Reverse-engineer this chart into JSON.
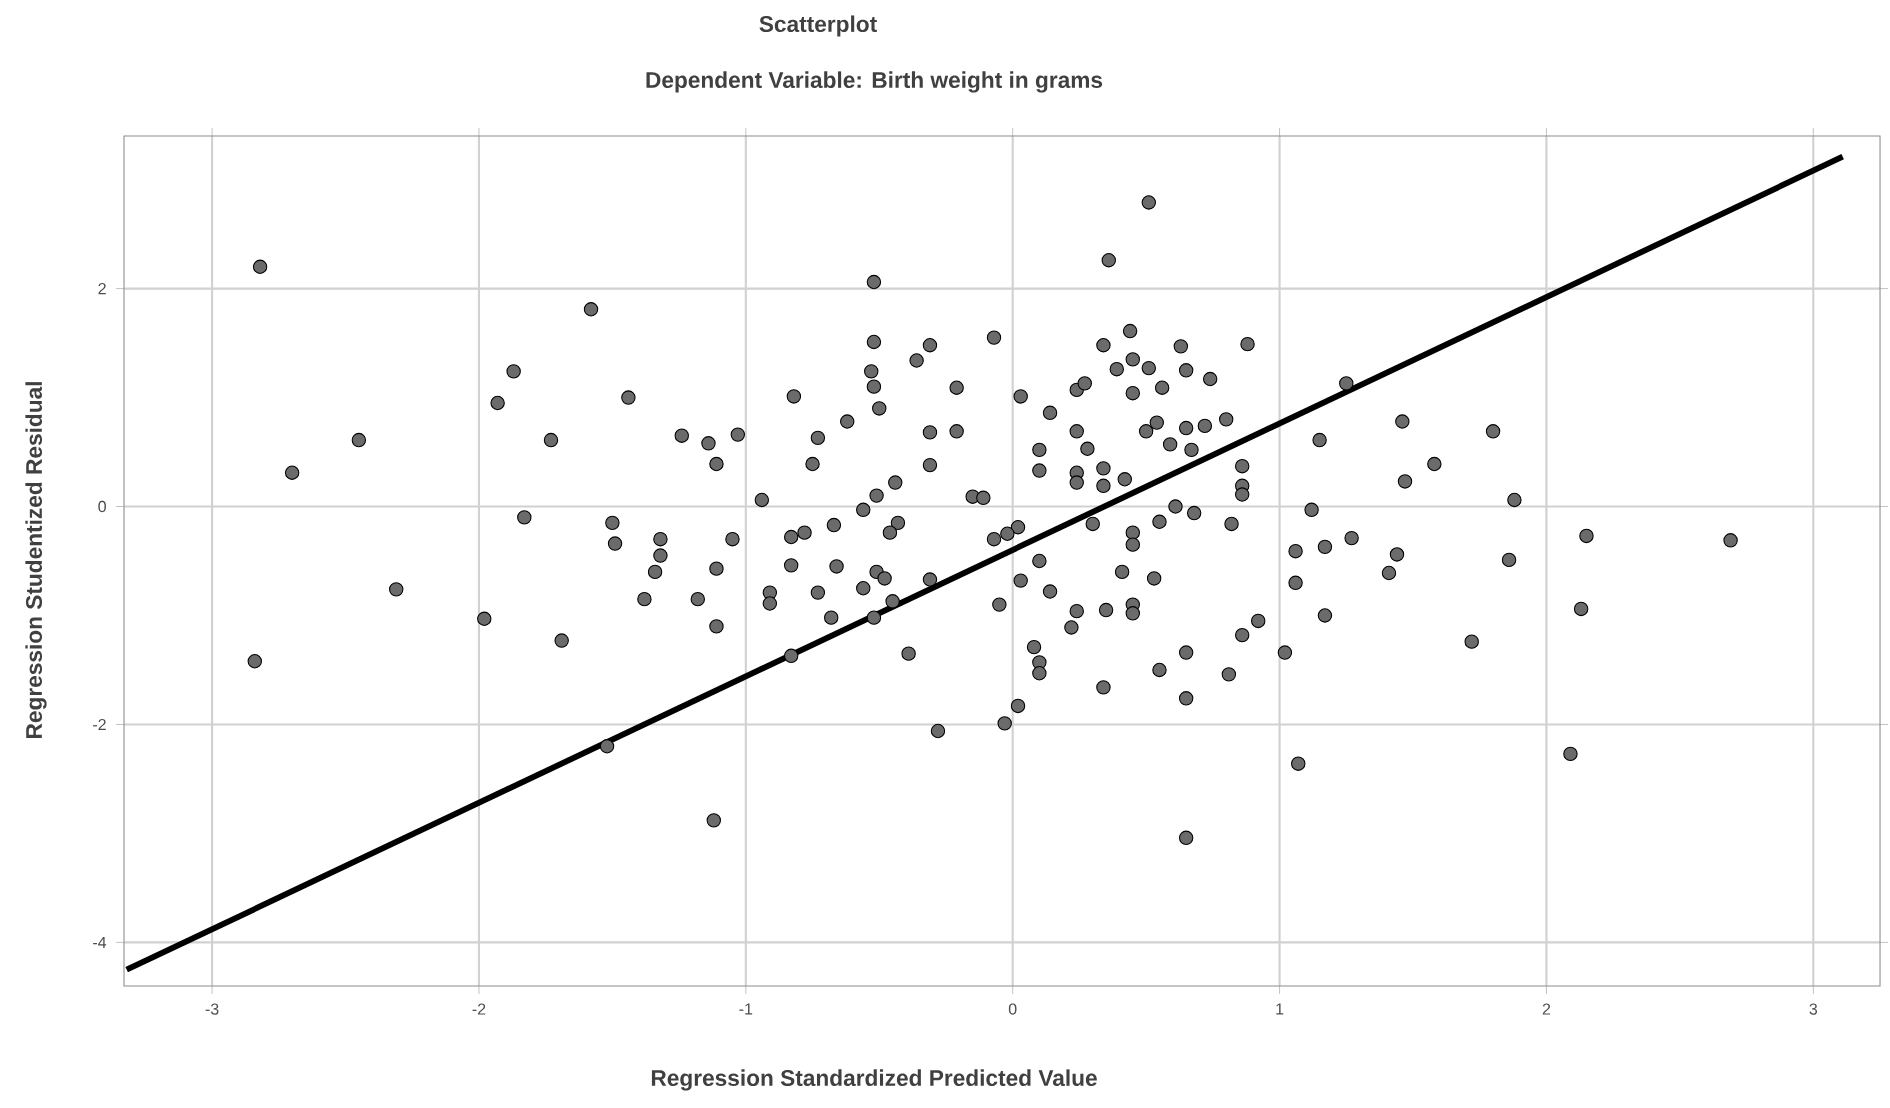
{
  "chart_data": {
    "type": "scatter",
    "title": "Scatterplot",
    "subtitle": "Dependent Variable: Birth weight in grams",
    "xlabel": "Regression Standardized Predicted Value",
    "ylabel": "Regression Studentized Residual",
    "xlim": [
      -3.33,
      3.25
    ],
    "ylim": [
      -4.4,
      3.4
    ],
    "xticks": [
      -3,
      -2,
      -1,
      0,
      1,
      2,
      3
    ],
    "yticks": [
      -4,
      -2,
      0,
      2
    ],
    "grid": true,
    "series": [
      {
        "marker": "circle",
        "color": "#6b6b6b",
        "x": [
          -2.82,
          -1.58,
          -1.87,
          -1.93,
          -1.44,
          -2.45,
          -2.7,
          -1.73,
          -1.24,
          -1.14,
          -1.11,
          -1.83,
          -1.5,
          -1.49,
          -1.32,
          -1.32,
          -2.31,
          -1.98,
          -1.69,
          -2.84,
          -1.34,
          -1.38,
          -1.18,
          -1.11,
          -1.11,
          -1.52,
          -1.12,
          0.51,
          0.36,
          -0.52,
          -0.07,
          -0.52,
          -0.31,
          -0.36,
          -0.53,
          -0.52,
          -0.21,
          -0.82,
          -0.5,
          -0.62,
          -0.73,
          -1.03,
          -0.75,
          -0.31,
          -0.21,
          -0.31,
          -0.94,
          -0.44,
          -0.51,
          -0.56,
          -0.15,
          -0.11,
          -0.43,
          -0.46,
          -0.67,
          -0.78,
          -0.83,
          -1.05,
          -0.07,
          0.02,
          -0.02,
          0.03,
          0.14,
          0.24,
          0.27,
          0.34,
          0.44,
          0.45,
          0.39,
          0.51,
          0.45,
          0.56,
          0.63,
          0.65,
          0.74,
          0.88,
          0.1,
          0.1,
          0.24,
          0.28,
          0.24,
          0.24,
          0.34,
          0.34,
          0.42,
          0.5,
          0.54,
          0.59,
          0.67,
          0.65,
          0.72,
          0.8,
          0.86,
          0.86,
          0.86,
          0.3,
          0.45,
          0.45,
          0.55,
          0.61,
          0.68,
          0.82,
          1.06,
          1.25,
          1.46,
          1.15,
          1.8,
          1.58,
          1.47,
          1.12,
          1.88,
          2.15,
          2.69,
          1.17,
          1.27,
          1.44,
          1.86,
          1.41,
          1.06,
          1.17,
          1.02,
          1.72,
          2.13,
          1.07,
          2.09,
          -0.83,
          -0.66,
          -0.91,
          -0.91,
          -0.73,
          -0.56,
          -0.51,
          -0.48,
          -0.68,
          -0.52,
          -0.45,
          -0.31,
          -0.83,
          -0.39,
          -0.05,
          0.03,
          0.1,
          0.14,
          0.08,
          0.1,
          0.1,
          0.02,
          -0.03,
          -0.28,
          0.24,
          0.22,
          0.35,
          0.41,
          0.45,
          0.45,
          0.53,
          0.34,
          0.55,
          0.65,
          0.65,
          0.81,
          0.86,
          0.92,
          0.65
        ],
        "values": [
          2.2,
          1.81,
          1.24,
          0.95,
          1.0,
          0.61,
          0.31,
          0.61,
          0.65,
          0.58,
          0.39,
          -0.1,
          -0.15,
          -0.34,
          -0.3,
          -0.45,
          -0.76,
          -1.03,
          -1.23,
          -1.42,
          -0.6,
          -0.85,
          -0.85,
          -0.57,
          -1.1,
          -2.2,
          -2.88,
          2.79,
          2.26,
          2.06,
          1.55,
          1.51,
          1.48,
          1.34,
          1.24,
          1.1,
          1.09,
          1.01,
          0.9,
          0.78,
          0.63,
          0.66,
          0.39,
          0.68,
          0.69,
          0.38,
          0.06,
          0.22,
          0.1,
          -0.03,
          0.09,
          0.08,
          -0.15,
          -0.24,
          -0.17,
          -0.24,
          -0.28,
          -0.3,
          -0.3,
          -0.19,
          -0.25,
          1.01,
          0.86,
          1.07,
          1.13,
          1.48,
          1.61,
          1.35,
          1.26,
          1.27,
          1.04,
          1.09,
          1.47,
          1.25,
          1.17,
          1.49,
          0.52,
          0.33,
          0.69,
          0.53,
          0.31,
          0.22,
          0.35,
          0.19,
          0.25,
          0.69,
          0.77,
          0.57,
          0.52,
          0.72,
          0.74,
          0.8,
          0.37,
          0.19,
          0.11,
          -0.16,
          -0.24,
          -0.35,
          -0.14,
          0.0,
          -0.06,
          -0.16,
          -0.41,
          1.13,
          0.78,
          0.61,
          0.69,
          0.39,
          0.23,
          -0.03,
          0.06,
          -0.27,
          -0.31,
          -0.37,
          -0.29,
          -0.44,
          -0.49,
          -0.61,
          -0.7,
          -1.0,
          -1.34,
          -1.24,
          -0.94,
          -2.36,
          -2.27,
          -0.54,
          -0.55,
          -0.79,
          -0.89,
          -0.79,
          -0.75,
          -0.6,
          -0.66,
          -1.02,
          -1.02,
          -0.87,
          -0.67,
          -1.37,
          -1.35,
          -0.9,
          -0.68,
          -0.5,
          -0.78,
          -1.29,
          -1.43,
          -1.53,
          -1.83,
          -1.99,
          -2.06,
          -0.96,
          -1.11,
          -0.95,
          -0.6,
          -0.9,
          -0.98,
          -0.66,
          -1.66,
          -1.5,
          -1.34,
          -1.76,
          -1.54,
          -1.18,
          -1.05,
          -3.04
        ]
      },
      {
        "type": "line",
        "marker": "none",
        "color": "#000000",
        "x": [
          -3.32,
          3.11
        ],
        "values": [
          -4.25,
          3.21
        ]
      }
    ]
  }
}
